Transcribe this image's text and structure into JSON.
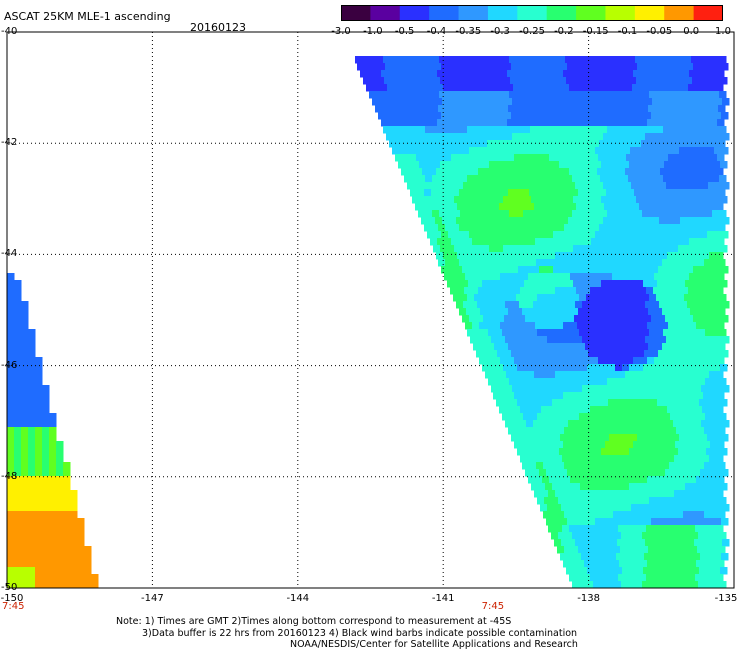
{
  "header": {
    "title": "ASCAT 25KM MLE-1 ascending",
    "date": "20160123"
  },
  "colorbar": {
    "tick_labels": [
      "-3.0",
      "-1.0",
      "-0.5",
      "-0.4",
      "-0.35",
      "-0.3",
      "-0.25",
      "-0.2",
      "-0.15",
      "-0.1",
      "-0.05",
      "0.0",
      "1.0"
    ],
    "colors": [
      "#3a0040",
      "#5a00a0",
      "#2a30ff",
      "#1f6cff",
      "#2f98ff",
      "#20d8ff",
      "#28ffd0",
      "#28ff70",
      "#60ff20",
      "#b8ff00",
      "#fff000",
      "#ff9800",
      "#ff2010"
    ]
  },
  "map": {
    "lat_labels": [
      "-40",
      "-42",
      "-44",
      "-46",
      "-48",
      "-50"
    ],
    "lon_labels": [
      "-150",
      "-147",
      "-144",
      "-141",
      "-138",
      "-135"
    ],
    "lat_range": [
      -50,
      -40
    ],
    "lon_range": [
      -150,
      -135
    ],
    "time_labels": [
      {
        "lon": -150,
        "text": "7:45"
      },
      {
        "lon": -140,
        "text": "7:45"
      }
    ],
    "grid": true
  },
  "notes": {
    "line1": "Note: 1) Times are GMT 2)Times along bottom correspond to measurement at -45S",
    "line2": "3)Data buffer is 22 hrs from 20160123 4) Black wind barbs indicate possible contamination",
    "line3": "NOAA/NESDIS/Center for Satellite Applications and Research"
  }
}
